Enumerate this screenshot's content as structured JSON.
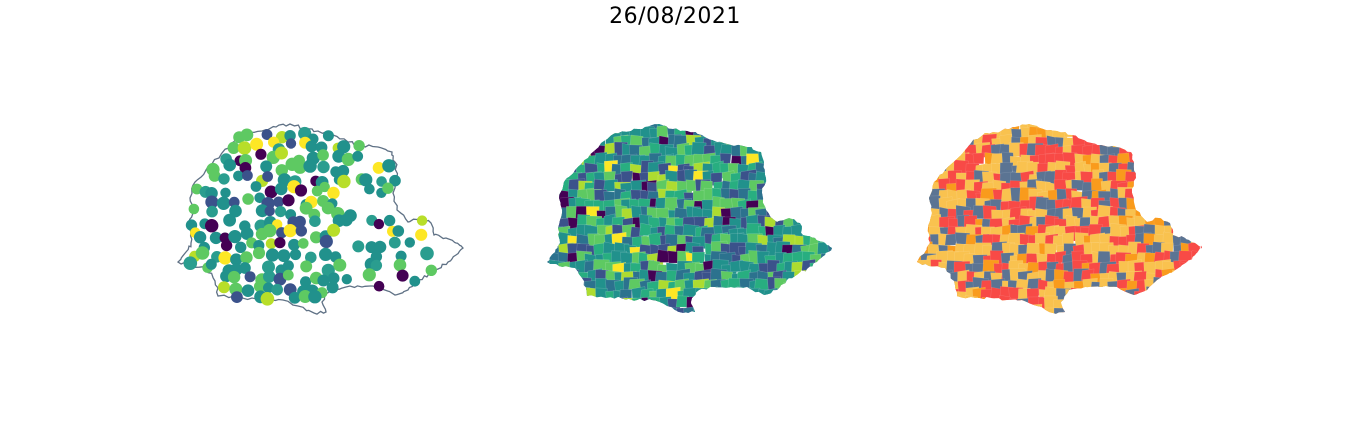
{
  "figure": {
    "title": "26/08/2021"
  },
  "maps": [
    {
      "id": "points",
      "type": "point-map",
      "palette": [
        "#440154",
        "#3b528b",
        "#21918c",
        "#2a9d8f",
        "#5ec962",
        "#b8de29",
        "#fde725"
      ]
    },
    {
      "id": "choropleth-continuous",
      "type": "choropleth",
      "palette": [
        "#440154",
        "#3b528b",
        "#2c728e",
        "#21918c",
        "#28ae80",
        "#5ec962",
        "#addc30",
        "#fde725"
      ]
    },
    {
      "id": "choropleth-categorical",
      "type": "choropleth",
      "palette": [
        "#5b7493",
        "#f84a46",
        "#f9c24f",
        "#f99b1c"
      ]
    }
  ],
  "colors": {
    "outline": "#5f7185",
    "background": "#ffffff"
  }
}
